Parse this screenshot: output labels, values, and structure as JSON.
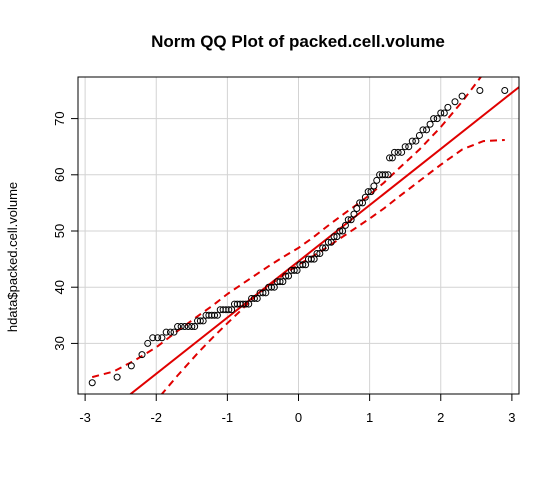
{
  "chart_data": {
    "type": "scatter",
    "title": "Norm QQ Plot of packed.cell.volume",
    "xlabel": "",
    "ylabel": "hdata$packed.cell.volume",
    "xlim": [
      -3.1,
      3.1
    ],
    "ylim": [
      21.0,
      77.4
    ],
    "x_ticks": [
      -3,
      -2,
      -1,
      0,
      1,
      2,
      3
    ],
    "y_ticks": [
      30,
      40,
      50,
      60,
      70
    ],
    "grid": true,
    "colors": {
      "points": "#000000",
      "reference_line": "#e00000",
      "confidence_band": "#e00000",
      "grid": "#d3d3d3",
      "frame": "#000000"
    },
    "reference_line": {
      "intercept": 44.6,
      "slope": 10.0
    },
    "confidence_band": {
      "x": [
        -2.9,
        -2.6,
        -2.3,
        -2.0,
        -1.7,
        -1.4,
        -1.2,
        -1.0,
        -0.8,
        -0.6,
        -0.4,
        -0.2,
        0.0,
        0.2,
        0.4,
        0.6,
        0.8,
        1.0,
        1.2,
        1.4,
        1.7,
        2.0,
        2.3,
        2.6,
        2.9
      ],
      "upper": [
        24.0,
        25.0,
        27.0,
        29.3,
        32.2,
        35.0,
        36.8,
        38.8,
        40.5,
        42.2,
        43.9,
        45.5,
        47.0,
        48.8,
        50.8,
        52.7,
        54.5,
        56.4,
        58.6,
        61.0,
        64.5,
        68.5,
        73.0,
        78.0,
        83.0
      ],
      "lower": [
        6.0,
        10.5,
        15.4,
        19.8,
        24.3,
        28.5,
        31.1,
        33.6,
        36.0,
        38.5,
        40.4,
        42.3,
        44.0,
        45.5,
        47.1,
        48.8,
        50.5,
        52.2,
        54.0,
        56.0,
        58.9,
        61.8,
        64.5,
        66.0,
        66.2
      ]
    },
    "points": [
      [
        -2.9,
        23
      ],
      [
        -2.55,
        24
      ],
      [
        -2.35,
        26
      ],
      [
        -2.2,
        28
      ],
      [
        -2.12,
        30
      ],
      [
        -2.05,
        31
      ],
      [
        -1.98,
        31
      ],
      [
        -1.92,
        31
      ],
      [
        -1.86,
        32
      ],
      [
        -1.8,
        32
      ],
      [
        -1.75,
        32
      ],
      [
        -1.7,
        33
      ],
      [
        -1.65,
        33
      ],
      [
        -1.6,
        33
      ],
      [
        -1.55,
        33
      ],
      [
        -1.5,
        33
      ],
      [
        -1.46,
        33
      ],
      [
        -1.42,
        34
      ],
      [
        -1.38,
        34
      ],
      [
        -1.34,
        34
      ],
      [
        -1.3,
        35
      ],
      [
        -1.26,
        35
      ],
      [
        -1.22,
        35
      ],
      [
        -1.18,
        35
      ],
      [
        -1.14,
        35
      ],
      [
        -1.1,
        36
      ],
      [
        -1.06,
        36
      ],
      [
        -1.02,
        36
      ],
      [
        -0.98,
        36
      ],
      [
        -0.94,
        36
      ],
      [
        -0.9,
        37
      ],
      [
        -0.86,
        37
      ],
      [
        -0.82,
        37
      ],
      [
        -0.78,
        37
      ],
      [
        -0.74,
        37
      ],
      [
        -0.7,
        37
      ],
      [
        -0.66,
        38
      ],
      [
        -0.62,
        38
      ],
      [
        -0.58,
        38
      ],
      [
        -0.54,
        39
      ],
      [
        -0.5,
        39
      ],
      [
        -0.46,
        39
      ],
      [
        -0.42,
        40
      ],
      [
        -0.38,
        40
      ],
      [
        -0.34,
        40
      ],
      [
        -0.3,
        41
      ],
      [
        -0.26,
        41
      ],
      [
        -0.22,
        41
      ],
      [
        -0.18,
        42
      ],
      [
        -0.14,
        42
      ],
      [
        -0.1,
        43
      ],
      [
        -0.06,
        43
      ],
      [
        -0.02,
        43
      ],
      [
        0.02,
        44
      ],
      [
        0.06,
        44
      ],
      [
        0.1,
        44
      ],
      [
        0.14,
        45
      ],
      [
        0.18,
        45
      ],
      [
        0.22,
        45
      ],
      [
        0.26,
        46
      ],
      [
        0.3,
        46
      ],
      [
        0.34,
        47
      ],
      [
        0.38,
        47
      ],
      [
        0.42,
        48
      ],
      [
        0.46,
        48
      ],
      [
        0.5,
        49
      ],
      [
        0.54,
        49
      ],
      [
        0.58,
        50
      ],
      [
        0.62,
        50
      ],
      [
        0.66,
        51
      ],
      [
        0.7,
        52
      ],
      [
        0.74,
        52
      ],
      [
        0.78,
        53
      ],
      [
        0.82,
        54
      ],
      [
        0.86,
        55
      ],
      [
        0.9,
        55
      ],
      [
        0.94,
        56
      ],
      [
        0.98,
        57
      ],
      [
        1.02,
        57
      ],
      [
        1.06,
        58
      ],
      [
        1.1,
        59
      ],
      [
        1.14,
        60
      ],
      [
        1.18,
        60
      ],
      [
        1.22,
        60
      ],
      [
        1.26,
        60
      ],
      [
        1.28,
        63
      ],
      [
        1.32,
        63
      ],
      [
        1.35,
        64
      ],
      [
        1.4,
        64
      ],
      [
        1.45,
        64
      ],
      [
        1.5,
        65
      ],
      [
        1.55,
        65
      ],
      [
        1.6,
        66
      ],
      [
        1.65,
        66
      ],
      [
        1.7,
        67
      ],
      [
        1.75,
        68
      ],
      [
        1.8,
        68
      ],
      [
        1.85,
        69
      ],
      [
        1.9,
        70
      ],
      [
        1.95,
        70
      ],
      [
        2.0,
        71
      ],
      [
        2.05,
        71
      ],
      [
        2.1,
        72
      ],
      [
        2.2,
        73
      ],
      [
        2.3,
        74
      ],
      [
        2.55,
        75
      ],
      [
        2.9,
        75
      ]
    ]
  }
}
